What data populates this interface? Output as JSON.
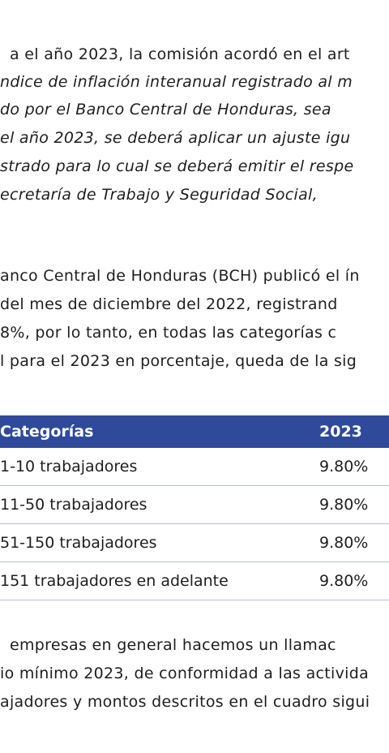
{
  "paragraphs": [
    {
      "lines": [
        {
          "text": "a el año 2023, la comisión acordó en el art",
          "italic": false
        },
        {
          "text": "ndice de inflación interanual registrado al m",
          "italic": true
        },
        {
          "text": "do por el Banco Central de Honduras, sea",
          "italic": true
        },
        {
          "text": "el año 2023, se deberá aplicar un ajuste igu",
          "italic": true
        },
        {
          "text": "strado para lo cual se deberá emitir el respe",
          "italic": true
        },
        {
          "text": "ecretaría de Trabajo y Seguridad Social,",
          "italic": true
        }
      ]
    },
    {
      "lines": [
        {
          "text": "anco Central de Honduras (BCH) publicó el ín",
          "italic": false
        },
        {
          "text": "del mes de diciembre del 2022, registrand",
          "italic": false
        },
        {
          "text": "8%, por lo tanto, en todas las categorías c",
          "italic": false
        },
        {
          "text": "l para el 2023 en porcentaje, queda de la sig",
          "italic": false
        }
      ]
    }
  ],
  "table": {
    "header": [
      "Categorías",
      "2023"
    ],
    "rows": [
      [
        "1-10 trabajadores",
        "9.80%"
      ],
      [
        "11-50 trabajadores",
        "9.80%"
      ],
      [
        "51-150 trabajadores",
        "9.80%"
      ],
      [
        "151 trabajadores en adelante",
        "9.80%"
      ]
    ]
  },
  "closing": {
    "lines": [
      {
        "text": "empresas en general hacemos un llamac",
        "italic": false
      },
      {
        "text": "io mínimo 2023, de conformidad a las activida",
        "italic": false
      },
      {
        "text": "ajadores y montos descritos en el cuadro sigui",
        "italic": false
      }
    ]
  }
}
